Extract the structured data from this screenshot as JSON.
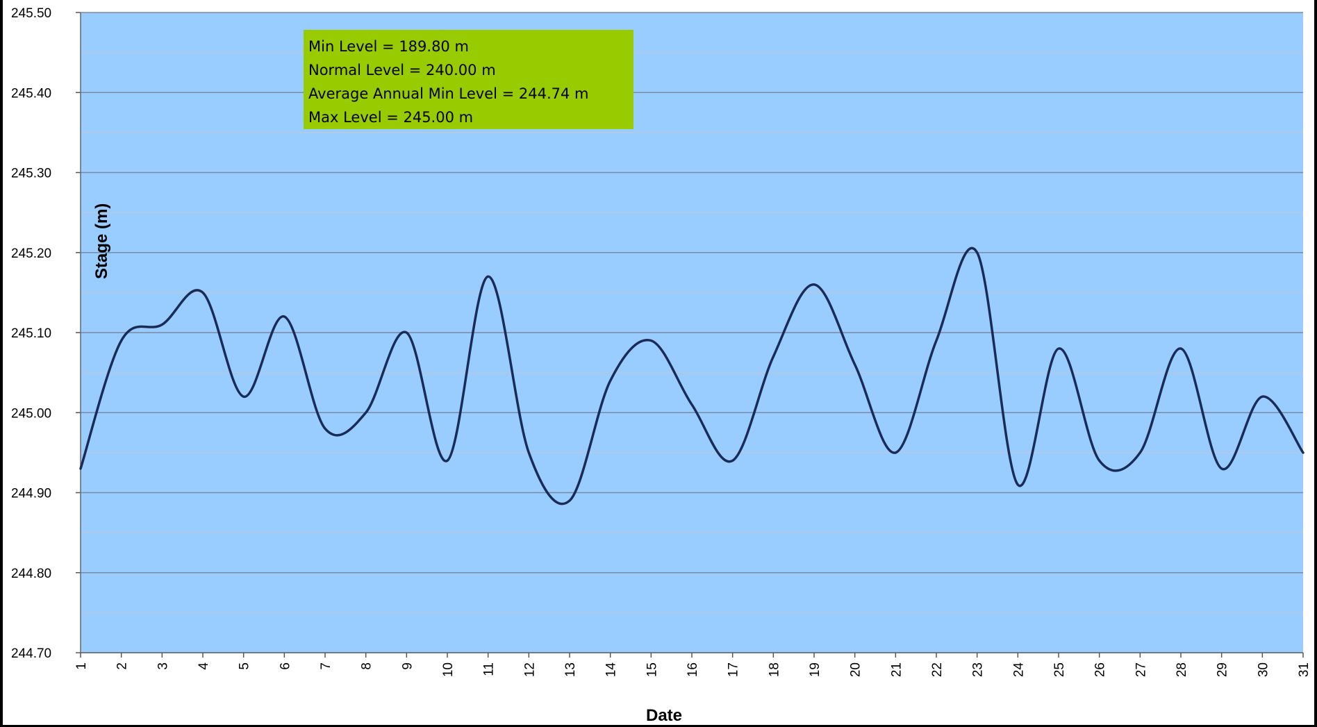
{
  "chart_data": {
    "type": "line",
    "title": "",
    "xlabel": "Date",
    "ylabel": "Stage (m)",
    "ylim": [
      244.7,
      245.5
    ],
    "y_ticks": [
      "244.70",
      "244.80",
      "244.90",
      "245.00",
      "245.10",
      "245.20",
      "245.30",
      "245.40",
      "245.50"
    ],
    "x": [
      1,
      2,
      3,
      4,
      5,
      6,
      7,
      8,
      9,
      10,
      11,
      12,
      13,
      14,
      15,
      16,
      17,
      18,
      19,
      20,
      21,
      22,
      23,
      24,
      25,
      26,
      27,
      28,
      29,
      30,
      31
    ],
    "series": [
      {
        "values": [
          244.93,
          245.09,
          245.11,
          245.15,
          245.02,
          245.12,
          244.98,
          245.0,
          245.1,
          244.94,
          245.17,
          244.95,
          244.89,
          245.04,
          245.09,
          245.01,
          244.94,
          245.07,
          245.16,
          245.06,
          244.95,
          245.09,
          245.2,
          244.91,
          245.08,
          244.94,
          244.95,
          245.08,
          244.93,
          245.02,
          244.95
        ]
      }
    ],
    "grid": true,
    "minor_grid": true,
    "legend": "none",
    "annotations": [
      "Min Level =  189.80  m",
      "Normal Level = 240.00  m",
      "Average Annual Min Level =  244.74  m",
      "Max Level = 245.00  m"
    ],
    "colors": {
      "plot_background": "#99ccff",
      "line": "#1b2b57",
      "major_grid": "#7a8aa0",
      "minor_grid": "#b8c8dc",
      "annotation_background": "#99cc00"
    }
  }
}
